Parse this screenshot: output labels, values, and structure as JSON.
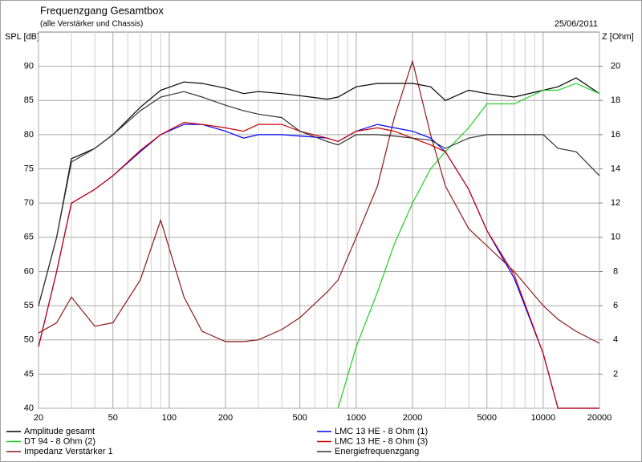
{
  "chart_data": {
    "type": "line",
    "title": "Frequenzgang Gesamtbox",
    "subtitle": "(alle Verstärker und Chassis)",
    "date": "25/06/2011",
    "y_label": "SPL [dB]",
    "y2_label": "Z [Ohm]",
    "xlog": true,
    "grid": true,
    "legend": "bottom",
    "xlim": [
      20,
      20000
    ],
    "xticks": [
      20,
      50,
      100,
      200,
      500,
      1000,
      2000,
      5000,
      10000,
      20000
    ],
    "xminorticks": [
      30,
      40,
      60,
      70,
      80,
      90,
      300,
      400,
      600,
      700,
      800,
      900,
      3000,
      4000,
      6000,
      7000,
      8000,
      9000
    ],
    "ylim": [
      40,
      95
    ],
    "yticks": [
      40,
      45,
      50,
      55,
      60,
      65,
      70,
      75,
      80,
      85,
      90
    ],
    "y2lim": [
      0,
      22
    ],
    "y2ticks": [
      2,
      4,
      6,
      8,
      10,
      12,
      14,
      16,
      18,
      20
    ],
    "x": [
      20,
      25,
      30,
      40,
      50,
      70,
      90,
      120,
      150,
      200,
      250,
      300,
      400,
      500,
      700,
      800,
      1000,
      1300,
      1600,
      2000,
      2500,
      3000,
      4000,
      5000,
      7000,
      10000,
      12000,
      15000,
      20000
    ],
    "series": [
      {
        "name": "Amplitude gesamt",
        "color": "#000000",
        "values": [
          55,
          65,
          76.5,
          78,
          80,
          84,
          86.5,
          87.7,
          87.5,
          86.8,
          86,
          86.3,
          86,
          85.7,
          85.2,
          85.5,
          87,
          87.5,
          87.5,
          87.5,
          87,
          85,
          86.5,
          86,
          85.5,
          86.5,
          87,
          88.3,
          86
        ]
      },
      {
        "name": "DT 94 - 8 Ohm (2)",
        "color": "#22cc22",
        "values": [
          null,
          null,
          null,
          null,
          null,
          null,
          null,
          null,
          null,
          null,
          null,
          null,
          null,
          null,
          null,
          40,
          49,
          57,
          64,
          70,
          75,
          77.5,
          81,
          84.5,
          84.5,
          86.5,
          86.5,
          87.5,
          86
        ]
      },
      {
        "name": "Impedanz Verstärker 1",
        "color": "#8b1a1a",
        "axis": "y2",
        "values": [
          4.4,
          5,
          6.5,
          4.8,
          5,
          7.5,
          11,
          6.5,
          4.5,
          3.9,
          3.9,
          4,
          4.6,
          5.3,
          6.8,
          7.5,
          10,
          13,
          17,
          20.3,
          16,
          13,
          10.5,
          9.5,
          8,
          6,
          5.2,
          4.5,
          3.8
        ]
      },
      {
        "name": "LMC 13 HE - 8 Ohm (1)",
        "color": "#0000ff",
        "values": [
          49,
          60,
          70,
          72,
          74,
          77.5,
          80,
          81.5,
          81.5,
          80.5,
          79.5,
          80,
          80,
          79.8,
          79.5,
          79,
          80.5,
          81.5,
          81,
          80.5,
          79.5,
          77.5,
          72,
          66,
          59,
          48,
          40,
          40,
          40
        ]
      },
      {
        "name": "LMC 13 HE - 8 Ohm (3)",
        "color": "#cc0000",
        "values": [
          49,
          60,
          70,
          72,
          74,
          77.7,
          80,
          81.8,
          81.5,
          81,
          80.5,
          81.5,
          81.5,
          80.5,
          79.5,
          79,
          80.5,
          81,
          80.5,
          79.5,
          78.5,
          77.5,
          72,
          66,
          59.5,
          48,
          40,
          40,
          40
        ]
      },
      {
        "name": "Energiefrequenzgang",
        "color": "#333333",
        "values": [
          55,
          65,
          76,
          78,
          80,
          83.5,
          85.5,
          86.3,
          85.5,
          84.3,
          83.5,
          83,
          82.5,
          80.5,
          79,
          78.5,
          80,
          80,
          79.8,
          79.5,
          79.2,
          78,
          79.5,
          80,
          80,
          80,
          78,
          77.5,
          74
        ]
      }
    ]
  }
}
